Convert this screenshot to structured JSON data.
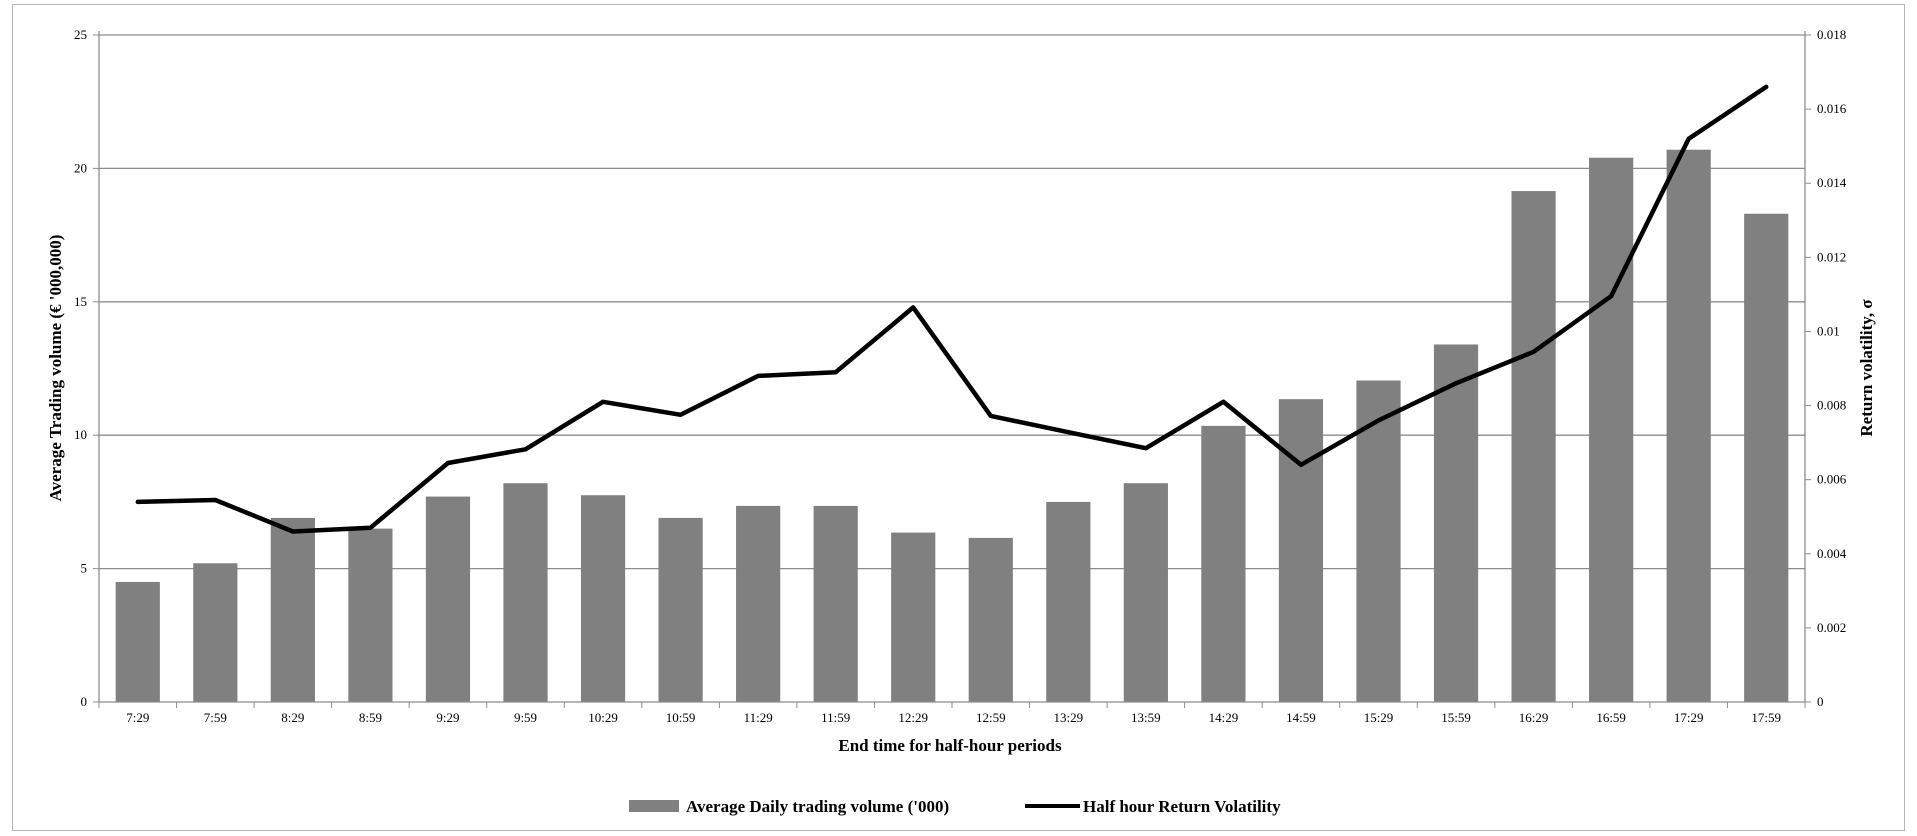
{
  "chart_data": {
    "type": "bar",
    "title": "",
    "xlabel": "End time for half-hour periods",
    "ylabel": "Average Trading volume (€ '000,000)",
    "y2label": "Return volatility, σ",
    "categories": [
      "7:29",
      "7:59",
      "8:29",
      "8:59",
      "9:29",
      "9:59",
      "10:29",
      "10:59",
      "11:29",
      "11:59",
      "12:29",
      "12:59",
      "13:29",
      "13:59",
      "14:29",
      "14:59",
      "15:29",
      "15:59",
      "16:29",
      "16:59",
      "17:29",
      "17:59"
    ],
    "ylim": [
      0,
      25
    ],
    "y_ticks": [
      "0",
      "5",
      "10",
      "15",
      "20",
      "25"
    ],
    "y2lim": [
      0,
      0.018
    ],
    "y2_ticks": [
      "0",
      "0.002",
      "0.004",
      "0.006",
      "0.008",
      "0.01",
      "0.012",
      "0.014",
      "0.016",
      "0.018"
    ],
    "grid": true,
    "legend_position": "bottom",
    "series": [
      {
        "name": "Average Daily trading volume ('000)",
        "type": "bar",
        "axis": "left",
        "color": "#808080",
        "values": [
          4.5,
          5.2,
          6.9,
          6.5,
          7.7,
          8.2,
          7.75,
          6.9,
          7.35,
          7.35,
          6.35,
          6.15,
          7.5,
          8.2,
          10.35,
          11.35,
          12.05,
          13.4,
          19.15,
          20.4,
          20.7,
          18.3
        ]
      },
      {
        "name": "Half hour Return Volatility",
        "type": "line",
        "axis": "right",
        "color": "#000000",
        "values": [
          0.0054,
          0.00545,
          0.0046,
          0.0047,
          0.00645,
          0.00682,
          0.0081,
          0.00775,
          0.0088,
          0.0089,
          0.01065,
          0.00772,
          0.00728,
          0.00685,
          0.0081,
          0.0064,
          0.0076,
          0.0086,
          0.00945,
          0.01095,
          0.0152,
          0.0166
        ]
      }
    ]
  }
}
